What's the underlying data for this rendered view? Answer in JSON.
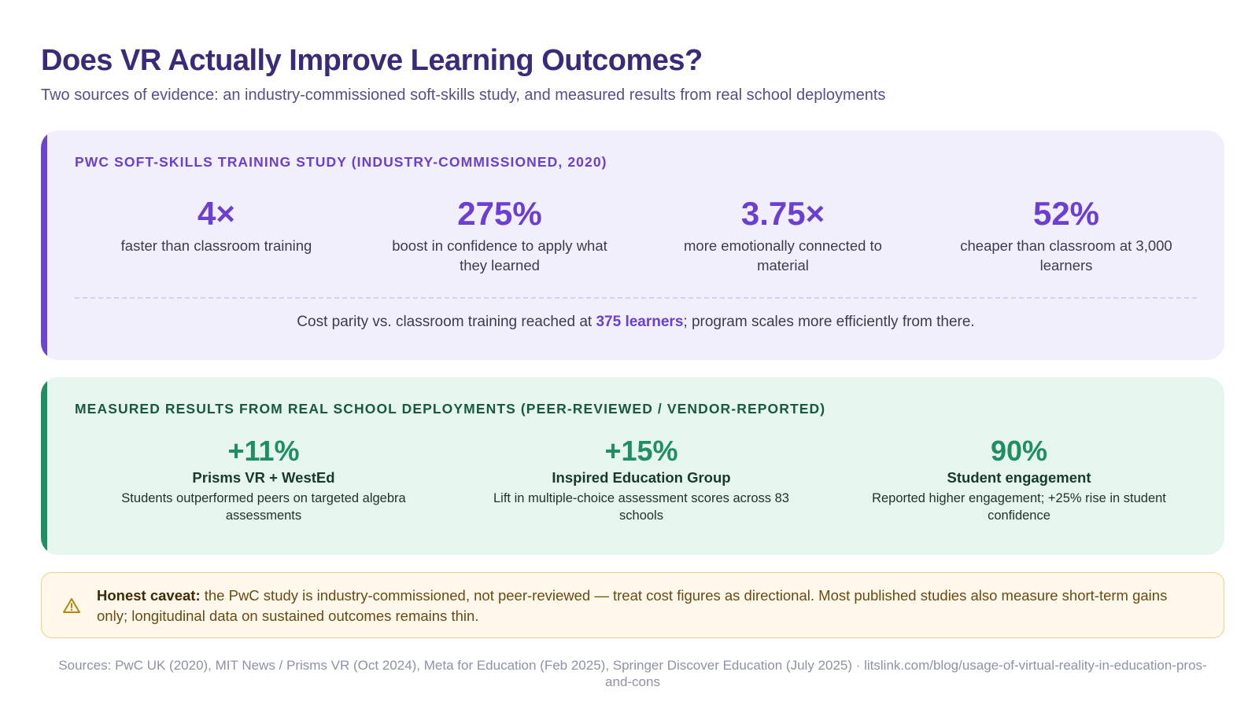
{
  "header": {
    "title": "Does VR Actually Improve Learning Outcomes?",
    "subtitle": "Two sources of evidence: an industry-commissioned soft-skills study, and measured results from real school deployments"
  },
  "pwc": {
    "section_title": "PWC SOFT-SKILLS TRAINING STUDY (INDUSTRY-COMMISSIONED, 2020)",
    "stats": [
      {
        "value": "4×",
        "label": "faster than classroom training"
      },
      {
        "value": "275%",
        "label": "boost in confidence to apply what they learned"
      },
      {
        "value": "3.75×",
        "label": "more emotionally connected to material"
      },
      {
        "value": "52%",
        "label": "cheaper than classroom at 3,000 learners"
      }
    ],
    "parity": {
      "before": "Cost parity vs. classroom training reached at ",
      "highlight": "375 learners",
      "after": "; program scales more efficiently from there."
    }
  },
  "deployments": {
    "section_title": "MEASURED RESULTS FROM REAL SCHOOL DEPLOYMENTS (PEER-REVIEWED / VENDOR-REPORTED)",
    "stats": [
      {
        "value": "+11%",
        "name": "Prisms VR + WestEd",
        "desc": "Students outperformed peers on targeted algebra assessments"
      },
      {
        "value": "+15%",
        "name": "Inspired Education Group",
        "desc": "Lift in multiple-choice assessment scores across 83 schools"
      },
      {
        "value": "90%",
        "name": "Student engagement",
        "desc": "Reported higher engagement; +25% rise in student confidence"
      }
    ]
  },
  "caveat": {
    "icon": "warning-icon",
    "lead": "Honest caveat:",
    "text": " the PwC study is industry-commissioned, not peer-reviewed — treat cost figures as directional. Most published studies also measure short-term gains only; longitudinal data on sustained outcomes remains thin."
  },
  "sources": "Sources: PwC UK (2020), MIT News / Prisms VR (Oct 2024), Meta for Education (Feb 2025), Springer Discover Education (July 2025) · litslink.com/blog/usage-of-virtual-reality-in-education-pros-and-cons",
  "colors": {
    "title": "#3b2a78",
    "pwc_accent": "#6a3fd1",
    "pwc_bg": "#f2effc",
    "deploy_accent": "#1f8e62",
    "deploy_bg": "#e6f6ef",
    "caveat_border": "#f1cf85",
    "caveat_bg": "#fff8eb"
  }
}
